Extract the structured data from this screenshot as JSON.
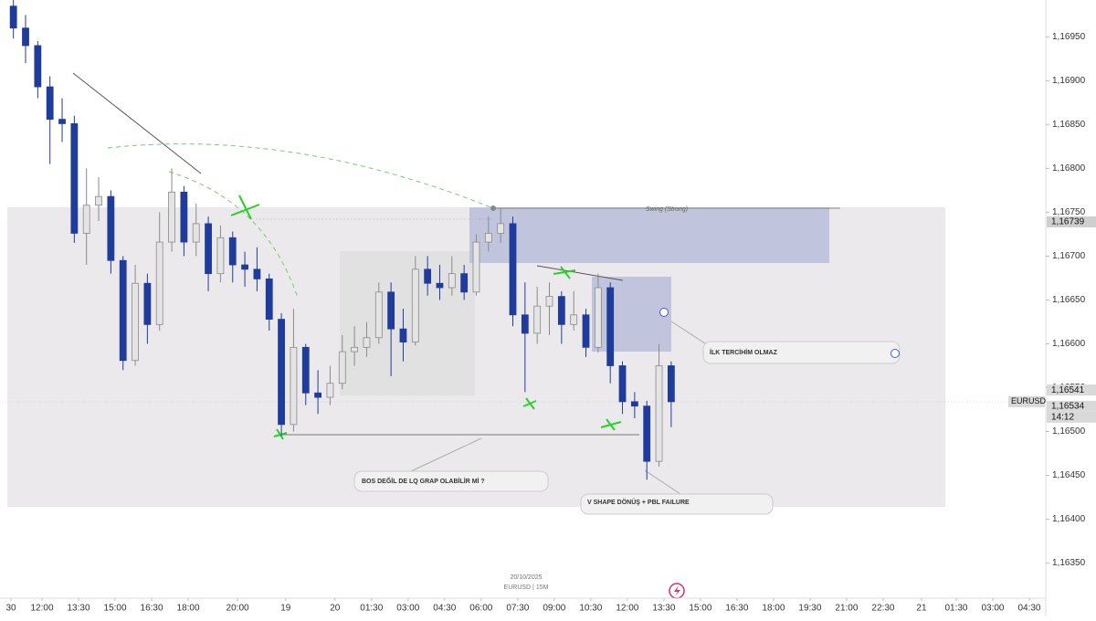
{
  "chart_data": {
    "type": "candlestick",
    "symbol": "EURUSD",
    "countdown": "14:12",
    "date_label": "20/10/2025",
    "interval_label": "EURUSD | 15M",
    "x": [
      1,
      3,
      5,
      7,
      9,
      11,
      13,
      15,
      17,
      19,
      21,
      23,
      25,
      27,
      29,
      31,
      33,
      35,
      37,
      39,
      41,
      43,
      45,
      47,
      49,
      51,
      53,
      55,
      57,
      59,
      61,
      63,
      65,
      67,
      69,
      71,
      73,
      75,
      77,
      79,
      81,
      83,
      85,
      87,
      89,
      91,
      93,
      95,
      97,
      99,
      101,
      103,
      105,
      107,
      109
    ],
    "open": [
      1.16985,
      1.1696,
      1.1694,
      1.16893,
      1.16856,
      1.16851,
      1.16726,
      1.16758,
      1.16768,
      1.16695,
      1.16581,
      1.16669,
      1.16622,
      1.16716,
      1.16773,
      1.16716,
      1.16737,
      1.1668,
      1.16721,
      1.1669,
      1.16685,
      1.16674,
      1.16628,
      1.16508,
      1.16596,
      1.16544,
      1.16539,
      1.16555,
      1.16591,
      1.16596,
      1.16607,
      1.16659,
      1.16617,
      1.16602,
      1.16685,
      1.16669,
      1.16664,
      1.1668,
      1.16659,
      1.16716,
      1.16726,
      1.16737,
      1.16633,
      1.16612,
      1.16643,
      1.16654,
      1.16622,
      1.16633,
      1.16596,
      1.16664,
      1.16575,
      1.16534,
      1.16529,
      1.16466,
      1.16575
    ],
    "high": [
      1.16992,
      1.16975,
      1.16945,
      1.16905,
      1.1688,
      1.1686,
      1.168,
      1.1679,
      1.16775,
      1.167,
      1.1669,
      1.1668,
      1.1675,
      1.168,
      1.1678,
      1.1676,
      1.16745,
      1.16735,
      1.16728,
      1.16705,
      1.1671,
      1.1668,
      1.16635,
      1.1664,
      1.166,
      1.1657,
      1.16575,
      1.1661,
      1.1662,
      1.16625,
      1.1667,
      1.1667,
      1.1664,
      1.167,
      1.167,
      1.1669,
      1.167,
      1.1669,
      1.16725,
      1.16745,
      1.16755,
      1.16745,
      1.1667,
      1.16665,
      1.1667,
      1.1666,
      1.1666,
      1.1664,
      1.1668,
      1.1667,
      1.1658,
      1.16545,
      1.16535,
      1.166,
      1.1658
    ],
    "low": [
      1.16948,
      1.1692,
      1.1688,
      1.16805,
      1.1683,
      1.16715,
      1.1669,
      1.1674,
      1.1668,
      1.1657,
      1.16575,
      1.166,
      1.16615,
      1.16705,
      1.167,
      1.167,
      1.1666,
      1.1667,
      1.1667,
      1.16665,
      1.1666,
      1.16615,
      1.16495,
      1.165,
      1.1653,
      1.1652,
      1.1653,
      1.16548,
      1.16575,
      1.16585,
      1.166,
      1.16563,
      1.1658,
      1.16598,
      1.16655,
      1.1665,
      1.16655,
      1.1665,
      1.16655,
      1.16705,
      1.16715,
      1.1662,
      1.16545,
      1.166,
      1.1661,
      1.166,
      1.16615,
      1.16585,
      1.1659,
      1.16555,
      1.1652,
      1.16515,
      1.16445,
      1.1646,
      1.16505
    ],
    "close": [
      1.1696,
      1.1694,
      1.16893,
      1.16856,
      1.16851,
      1.16726,
      1.16758,
      1.16768,
      1.16695,
      1.16581,
      1.16669,
      1.16622,
      1.16716,
      1.16773,
      1.16716,
      1.16737,
      1.1668,
      1.16721,
      1.1669,
      1.16685,
      1.16674,
      1.16628,
      1.16508,
      1.16596,
      1.16544,
      1.16539,
      1.16555,
      1.16591,
      1.16596,
      1.16607,
      1.16659,
      1.16617,
      1.16602,
      1.16685,
      1.16669,
      1.16664,
      1.1668,
      1.16659,
      1.16716,
      1.16726,
      1.16737,
      1.16633,
      1.16612,
      1.16643,
      1.16654,
      1.16622,
      1.16633,
      1.16596,
      1.16664,
      1.16575,
      1.16534,
      1.16529,
      1.16466,
      1.16575,
      1.16534
    ],
    "up_color": "#e4e4e4",
    "down_color": "#1f3c9c",
    "xlim": [
      -1.2,
      170.5
    ],
    "xticks": [
      {
        "value": 0.6,
        "label": "30"
      },
      {
        "value": 5.7,
        "label": "12:00"
      },
      {
        "value": 11.7,
        "label": "13:30"
      },
      {
        "value": 17.7,
        "label": "15:00"
      },
      {
        "value": 23.7,
        "label": "16:30"
      },
      {
        "value": 29.7,
        "label": "18:00"
      },
      {
        "value": 37.8,
        "label": "20:00"
      },
      {
        "value": 45.7,
        "label": "19"
      },
      {
        "value": 53.8,
        "label": "20"
      },
      {
        "value": 59.8,
        "label": "01:30"
      },
      {
        "value": 65.8,
        "label": "03:00"
      },
      {
        "value": 71.8,
        "label": "04:30"
      },
      {
        "value": 77.8,
        "label": "06:00"
      },
      {
        "value": 83.8,
        "label": "07:30"
      },
      {
        "value": 89.8,
        "label": "09:00"
      },
      {
        "value": 95.8,
        "label": "10:30"
      },
      {
        "value": 101.8,
        "label": "12:00"
      },
      {
        "value": 107.8,
        "label": "13:30"
      },
      {
        "value": 113.8,
        "label": "15:00"
      },
      {
        "value": 119.8,
        "label": "16:30"
      },
      {
        "value": 125.8,
        "label": "18:00"
      },
      {
        "value": 131.8,
        "label": "19:30"
      },
      {
        "value": 137.8,
        "label": "21:00"
      },
      {
        "value": 143.8,
        "label": "22:30"
      },
      {
        "value": 150.1,
        "label": "21"
      },
      {
        "value": 155.8,
        "label": "01:30"
      },
      {
        "value": 161.8,
        "label": "03:00"
      },
      {
        "value": 167.8,
        "label": "04:30"
      }
    ],
    "ylim": [
      1.1631,
      1.16992
    ],
    "yticks": [
      {
        "value": 1.1695,
        "label": "1,16950"
      },
      {
        "value": 1.169,
        "label": "1,16900"
      },
      {
        "value": 1.1685,
        "label": "1,16850"
      },
      {
        "value": 1.168,
        "label": "1,16800"
      },
      {
        "value": 1.1675,
        "label": "1,16750"
      },
      {
        "value": 1.167,
        "label": "1,16700"
      },
      {
        "value": 1.1665,
        "label": "1,16650"
      },
      {
        "value": 1.166,
        "label": "1,16600"
      },
      {
        "value": 1.1655,
        "label": "1,16550"
      },
      {
        "value": 1.165,
        "label": "1,16500"
      },
      {
        "value": 1.1645,
        "label": "1,16450"
      },
      {
        "value": 1.164,
        "label": "1,16400"
      },
      {
        "value": 1.1635,
        "label": "1,16350"
      }
    ],
    "price_labels": [
      {
        "value": 1.16739,
        "label": "1,16739"
      },
      {
        "value": 1.16541,
        "label": "1,16541"
      },
      {
        "value": 1.16534,
        "label": "1,16534"
      }
    ],
    "annotations": [
      "Swing (Strong)",
      "İLK TERCİHİM OLMAZ",
      "BOS DEĞİL DE LQ GRAP OLABİLİR Mİ ?",
      "V SHAPE DÖNÜŞ + PBL FAILURE"
    ]
  }
}
